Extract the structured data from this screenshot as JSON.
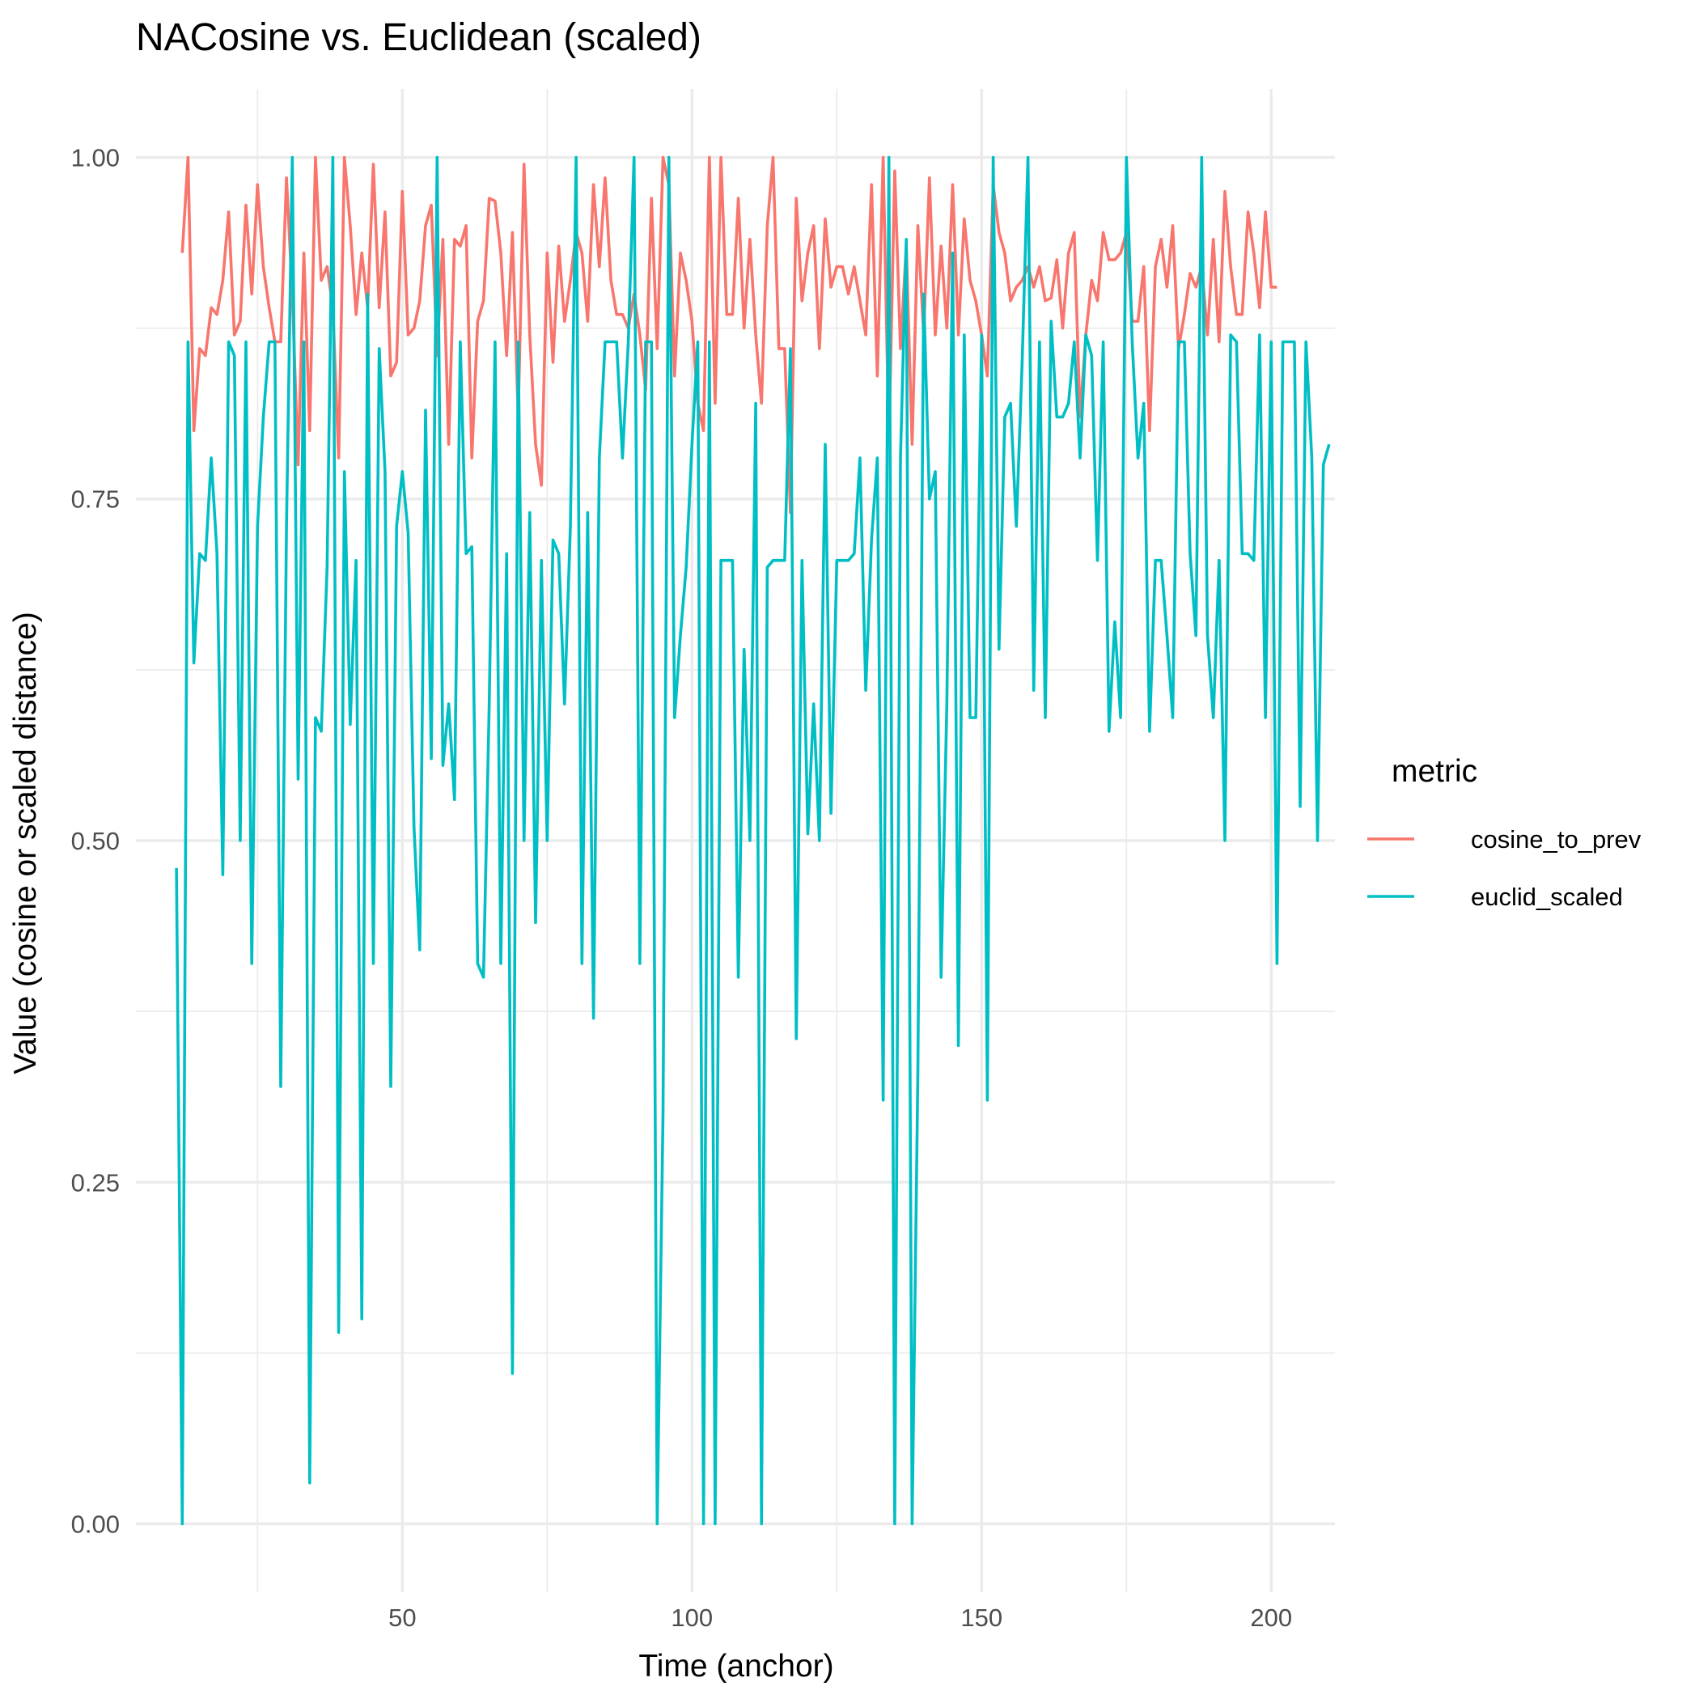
{
  "chart_data": {
    "type": "line",
    "title": "NACosine vs. Euclidean (scaled)",
    "xlabel": "Time (anchor)",
    "ylabel": "Value (cosine or scaled distance)",
    "xlim": [
      4,
      211
    ],
    "ylim": [
      -0.05,
      1.05
    ],
    "x_ticks": [
      50,
      100,
      150,
      200
    ],
    "x_tick_labels": [
      "50",
      "100",
      "150",
      "200"
    ],
    "y_ticks": [
      0,
      0.25,
      0.5,
      0.75,
      1
    ],
    "y_tick_labels": [
      "0.00",
      "0.25",
      "0.50",
      "0.75",
      "1.00"
    ],
    "x_minor_ticks": [
      25,
      75,
      125,
      175
    ],
    "y_minor_ticks": [
      0.125,
      0.375,
      0.625,
      0.875
    ],
    "grid": true,
    "legend": {
      "title": "metric",
      "position": "right"
    },
    "series": [
      {
        "name": "cosine_to_prev",
        "color": "#F8766D",
        "x_start": 12,
        "y": [
          0.93,
          1.0,
          0.8,
          0.86,
          0.855,
          0.89,
          0.885,
          0.91,
          0.96,
          0.87,
          0.88,
          0.965,
          0.9,
          0.98,
          0.92,
          0.89,
          0.865,
          0.865,
          0.985,
          0.9,
          0.775,
          0.93,
          0.8,
          1.0,
          0.91,
          0.92,
          0.89,
          0.78,
          1.0,
          0.95,
          0.885,
          0.93,
          0.89,
          0.995,
          0.89,
          0.96,
          0.84,
          0.85,
          0.975,
          0.87,
          0.875,
          0.895,
          0.95,
          0.965,
          0.855,
          0.94,
          0.79,
          0.94,
          0.935,
          0.95,
          0.78,
          0.88,
          0.895,
          0.97,
          0.968,
          0.93,
          0.855,
          0.945,
          0.81,
          0.995,
          0.87,
          0.79,
          0.76,
          0.93,
          0.85,
          0.935,
          0.88,
          0.91,
          0.945,
          0.93,
          0.88,
          0.98,
          0.92,
          0.985,
          0.91,
          0.885,
          0.885,
          0.875,
          0.9,
          0.87,
          0.83,
          0.97,
          0.86,
          1.0,
          0.98,
          0.84,
          0.93,
          0.91,
          0.88,
          0.82,
          0.8,
          1.0,
          0.82,
          1.0,
          0.885,
          0.885,
          0.97,
          0.875,
          0.94,
          0.87,
          0.82,
          0.95,
          1.0,
          0.86,
          0.86,
          0.74,
          0.97,
          0.895,
          0.93,
          0.95,
          0.86,
          0.955,
          0.905,
          0.92,
          0.92,
          0.9,
          0.92,
          0.895,
          0.87,
          0.98,
          0.84,
          1.0,
          0.79,
          0.99,
          0.86,
          0.935,
          0.79,
          0.95,
          0.87,
          0.985,
          0.87,
          0.935,
          0.875,
          0.98,
          0.87,
          0.955,
          0.91,
          0.895,
          0.87,
          0.84,
          0.98,
          0.945,
          0.93,
          0.895,
          0.905,
          0.91,
          0.92,
          0.905,
          0.92,
          0.895,
          0.897,
          0.925,
          0.875,
          0.93,
          0.945,
          0.81,
          0.87,
          0.91,
          0.895,
          0.945,
          0.925,
          0.925,
          0.93,
          0.945,
          0.88,
          0.88,
          0.92,
          0.8,
          0.92,
          0.94,
          0.905,
          0.95,
          0.86,
          0.885,
          0.915,
          0.905,
          0.92,
          0.87,
          0.94,
          0.865,
          0.975,
          0.92,
          0.885,
          0.885,
          0.96,
          0.93,
          0.89,
          0.96,
          0.905,
          0.905
        ]
      },
      {
        "name": "euclid_scaled",
        "color": "#00BFC4",
        "x_start": 11,
        "y": [
          0.48,
          0.0,
          0.865,
          0.63,
          0.71,
          0.705,
          0.78,
          0.71,
          0.475,
          0.865,
          0.855,
          0.5,
          0.865,
          0.41,
          0.73,
          0.81,
          0.865,
          0.865,
          0.32,
          0.73,
          1.0,
          0.545,
          0.865,
          0.03,
          0.59,
          0.58,
          0.7,
          1.0,
          0.14,
          0.77,
          0.585,
          0.705,
          0.15,
          0.9,
          0.41,
          0.86,
          0.77,
          0.32,
          0.73,
          0.77,
          0.725,
          0.51,
          0.42,
          0.815,
          0.56,
          1.0,
          0.555,
          0.6,
          0.53,
          0.865,
          0.71,
          0.715,
          0.41,
          0.4,
          0.6,
          0.865,
          0.41,
          0.71,
          0.11,
          0.865,
          0.5,
          0.74,
          0.44,
          0.705,
          0.5,
          0.72,
          0.71,
          0.6,
          0.73,
          1.0,
          0.41,
          0.74,
          0.37,
          0.78,
          0.865,
          0.865,
          0.865,
          0.78,
          0.865,
          1.0,
          0.41,
          0.865,
          0.865,
          0.0,
          0.3,
          1.0,
          0.59,
          0.65,
          0.7,
          0.79,
          0.865,
          0.0,
          0.865,
          0.0,
          0.705,
          0.705,
          0.705,
          0.4,
          0.64,
          0.5,
          0.82,
          0.0,
          0.7,
          0.705,
          0.705,
          0.705,
          0.86,
          0.355,
          0.705,
          0.505,
          0.6,
          0.5,
          0.79,
          0.52,
          0.705,
          0.705,
          0.705,
          0.71,
          0.78,
          0.61,
          0.72,
          0.78,
          0.31,
          1.0,
          0.0,
          0.78,
          0.94,
          0.0,
          0.33,
          0.9,
          0.75,
          0.77,
          0.4,
          0.6,
          0.93,
          0.35,
          0.87,
          0.59,
          0.59,
          0.87,
          0.31,
          1.0,
          0.64,
          0.81,
          0.82,
          0.73,
          0.85,
          1.0,
          0.61,
          0.865,
          0.59,
          0.88,
          0.81,
          0.81,
          0.82,
          0.865,
          0.78,
          0.87,
          0.855,
          0.705,
          0.865,
          0.58,
          0.66,
          0.59,
          1.0,
          0.865,
          0.78,
          0.82,
          0.58,
          0.705,
          0.705,
          0.65,
          0.59,
          0.865,
          0.865,
          0.71,
          0.65,
          1.0,
          0.65,
          0.59,
          0.705,
          0.5,
          0.87,
          0.865,
          0.71,
          0.71,
          0.705,
          0.87,
          0.59,
          0.865,
          0.41,
          0.865,
          0.865,
          0.865,
          0.525,
          0.865,
          0.78,
          0.5,
          0.775,
          0.79
        ]
      }
    ]
  }
}
